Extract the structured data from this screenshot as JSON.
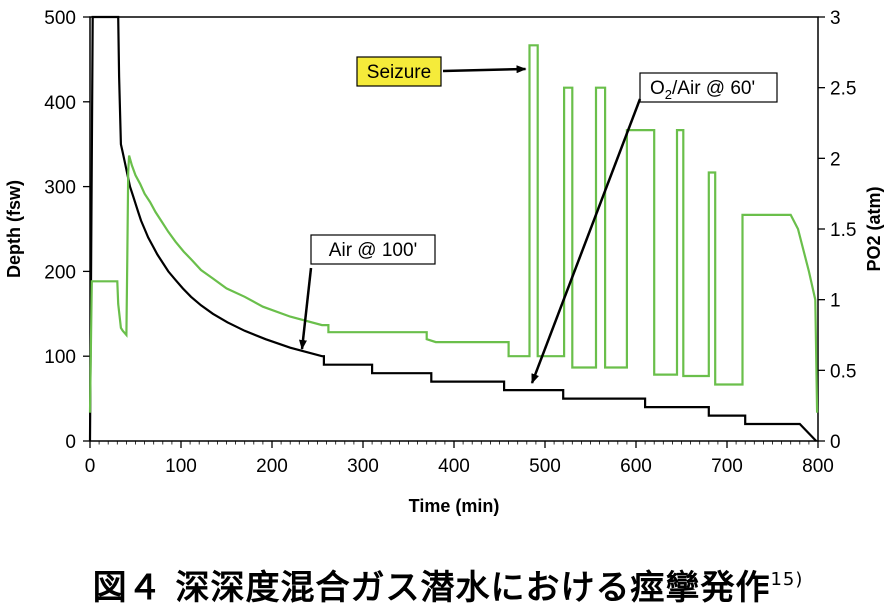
{
  "chart_data": {
    "type": "line",
    "title": "",
    "xlabel": "Time (min)",
    "ylabel_left": "Depth (fsw)",
    "ylabel_right": "PO2 (atm)",
    "xlim": [
      0,
      800
    ],
    "ylim_left": [
      0,
      500
    ],
    "ylim_right": [
      0,
      3
    ],
    "x_ticks": [
      0,
      100,
      200,
      300,
      400,
      500,
      600,
      700,
      800
    ],
    "y_ticks_left": [
      0,
      100,
      200,
      300,
      400,
      500
    ],
    "y_ticks_right": [
      "0",
      "0.5",
      "1",
      "1.5",
      "2",
      "2.5",
      "3"
    ],
    "grid": false,
    "series": [
      {
        "axis": "left",
        "color": "#000000",
        "points": [
          [
            0,
            0
          ],
          [
            3,
            500
          ],
          [
            31,
            500
          ],
          [
            32,
            430
          ],
          [
            34,
            350
          ],
          [
            36,
            340
          ],
          [
            38,
            330
          ],
          [
            40,
            320
          ],
          [
            42,
            310
          ],
          [
            44,
            300
          ],
          [
            47,
            290
          ],
          [
            50,
            280
          ],
          [
            53,
            270
          ],
          [
            56,
            260
          ],
          [
            60,
            250
          ],
          [
            64,
            240
          ],
          [
            69,
            230
          ],
          [
            74,
            220
          ],
          [
            80,
            210
          ],
          [
            86,
            200
          ],
          [
            94,
            190
          ],
          [
            102,
            180
          ],
          [
            111,
            170
          ],
          [
            122,
            160
          ],
          [
            135,
            150
          ],
          [
            151,
            140
          ],
          [
            170,
            130
          ],
          [
            193,
            120
          ],
          [
            220,
            110
          ],
          [
            255,
            100
          ],
          [
            257,
            100
          ],
          [
            257,
            90
          ],
          [
            310,
            90
          ],
          [
            310,
            80
          ],
          [
            375,
            80
          ],
          [
            375,
            70
          ],
          [
            455,
            70
          ],
          [
            455,
            60
          ],
          [
            520,
            60
          ],
          [
            520,
            50
          ],
          [
            610,
            50
          ],
          [
            610,
            40
          ],
          [
            680,
            40
          ],
          [
            680,
            30
          ],
          [
            720,
            30
          ],
          [
            720,
            20
          ],
          [
            780,
            20
          ],
          [
            798,
            0
          ]
        ]
      },
      {
        "axis": "right",
        "color": "#6abf4b",
        "points": [
          [
            0,
            0.2
          ],
          [
            2,
            1.13
          ],
          [
            30,
            1.13
          ],
          [
            31,
            0.97
          ],
          [
            34,
            0.8
          ],
          [
            36,
            0.78
          ],
          [
            40,
            0.75
          ],
          [
            41,
            1.3
          ],
          [
            42,
            1.9
          ],
          [
            43,
            2.02
          ],
          [
            46,
            1.95
          ],
          [
            50,
            1.88
          ],
          [
            55,
            1.82
          ],
          [
            60,
            1.75
          ],
          [
            66,
            1.69
          ],
          [
            72,
            1.62
          ],
          [
            79,
            1.55
          ],
          [
            86,
            1.48
          ],
          [
            94,
            1.41
          ],
          [
            103,
            1.34
          ],
          [
            112,
            1.28
          ],
          [
            122,
            1.21
          ],
          [
            135,
            1.15
          ],
          [
            150,
            1.08
          ],
          [
            170,
            1.02
          ],
          [
            190,
            0.95
          ],
          [
            220,
            0.88
          ],
          [
            255,
            0.82
          ],
          [
            262,
            0.82
          ],
          [
            262,
            0.77
          ],
          [
            370,
            0.77
          ],
          [
            370,
            0.72
          ],
          [
            380,
            0.7
          ],
          [
            460,
            0.7
          ],
          [
            460,
            0.6
          ],
          [
            483,
            0.6
          ],
          [
            483,
            2.8
          ],
          [
            492,
            2.8
          ],
          [
            492,
            0.6
          ],
          [
            521,
            0.6
          ],
          [
            521,
            2.5
          ],
          [
            530,
            2.5
          ],
          [
            530,
            0.52
          ],
          [
            556,
            0.52
          ],
          [
            556,
            2.5
          ],
          [
            566,
            2.5
          ],
          [
            566,
            0.52
          ],
          [
            590,
            0.52
          ],
          [
            590,
            2.2
          ],
          [
            620,
            2.2
          ],
          [
            620,
            0.47
          ],
          [
            645,
            0.47
          ],
          [
            645,
            2.2
          ],
          [
            652,
            2.2
          ],
          [
            652,
            0.46
          ],
          [
            680,
            0.46
          ],
          [
            680,
            1.9
          ],
          [
            687,
            1.9
          ],
          [
            687,
            0.4
          ],
          [
            717,
            0.4
          ],
          [
            717,
            1.6
          ],
          [
            770,
            1.6
          ],
          [
            778,
            1.5
          ],
          [
            790,
            1.2
          ],
          [
            797,
            1.0
          ],
          [
            799,
            0.2
          ]
        ]
      }
    ],
    "annotations": [
      {
        "text": "Seizure",
        "highlight": "#f5eb3a",
        "target": [
          483,
          2.8
        ],
        "target_axis": "right",
        "label_pos": [
          393,
          2.65
        ]
      },
      {
        "text_main": "O",
        "text_sub": "2",
        "text_rest": "/Air @ 60'",
        "target": [
          486,
          60
        ],
        "target_axis": "left",
        "label_pos": [
          705,
          2.5
        ]
      },
      {
        "text": "Air @ 100'",
        "target": [
          235,
          100
        ],
        "target_axis": "left",
        "label_pos": [
          366,
          1.38
        ]
      }
    ]
  },
  "caption": {
    "text": "図４ 深深度混合ガス潜水における痙攣発作",
    "superscript": "15)"
  }
}
